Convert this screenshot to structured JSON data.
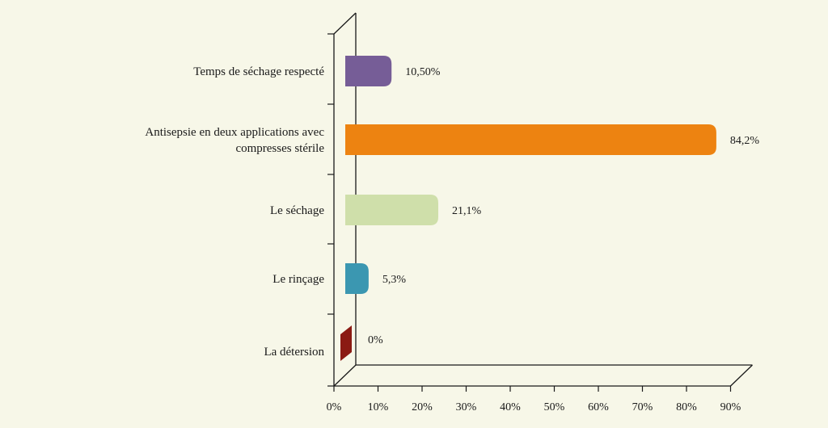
{
  "chart_data": {
    "type": "bar",
    "orientation": "horizontal",
    "categories": [
      [
        "Temps de séchage respecté"
      ],
      [
        "Antisepsie en deux applications avec",
        "compresses stérile"
      ],
      [
        "Le séchage"
      ],
      [
        "Le rinçage"
      ],
      [
        "La détersion"
      ]
    ],
    "values": [
      10.5,
      84.2,
      21.1,
      5.3,
      0
    ],
    "value_labels": [
      "10,50%",
      "84,2%",
      "21,1%",
      "5,3%",
      "0%"
    ],
    "bar_colors": [
      "#765d97",
      "#ed8311",
      "#cfdfaa",
      "#3b97b1",
      "#8b1a13"
    ],
    "x_ticks": [
      "0%",
      "10%",
      "20%",
      "30%",
      "40%",
      "50%",
      "60%",
      "70%",
      "80%",
      "90%"
    ],
    "xlim": [
      0,
      90
    ],
    "grid": false,
    "title": "",
    "xlabel": "",
    "ylabel": ""
  }
}
